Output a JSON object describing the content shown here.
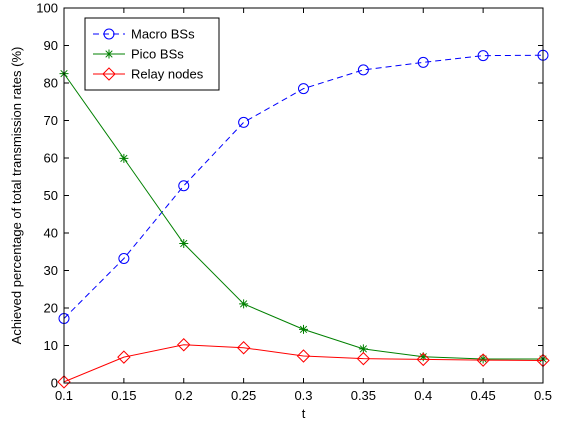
{
  "chart_data": {
    "type": "line",
    "title": "",
    "xlabel": "t",
    "ylabel": "Achieved percentage of total transmission rates (%)",
    "x": [
      0.1,
      0.15,
      0.2,
      0.25,
      0.3,
      0.35,
      0.4,
      0.45,
      0.5
    ],
    "xlim": [
      0.1,
      0.5
    ],
    "ylim": [
      0,
      100
    ],
    "xticks": [
      "0.1",
      "0.15",
      "0.2",
      "0.25",
      "0.3",
      "0.35",
      "0.4",
      "0.45",
      "0.5"
    ],
    "yticks": [
      "0",
      "10",
      "20",
      "30",
      "40",
      "50",
      "60",
      "70",
      "80",
      "90",
      "100"
    ],
    "grid": false,
    "legend_position": "top-left",
    "series": [
      {
        "name": "Macro BSs",
        "color": "#0000ff",
        "line": "dashed",
        "marker": "circle",
        "values": [
          17.2,
          33.2,
          52.6,
          69.5,
          78.5,
          83.5,
          85.5,
          87.3,
          87.4
        ]
      },
      {
        "name": "Pico BSs",
        "color": "#008000",
        "line": "solid",
        "marker": "star",
        "values": [
          82.5,
          59.9,
          37.2,
          21.1,
          14.3,
          9.1,
          7.0,
          6.4,
          6.4
        ]
      },
      {
        "name": "Relay nodes",
        "color": "#ff0000",
        "line": "solid",
        "marker": "diamond",
        "values": [
          0.3,
          6.9,
          10.2,
          9.4,
          7.2,
          6.5,
          6.3,
          6.1,
          6.0
        ]
      }
    ]
  }
}
